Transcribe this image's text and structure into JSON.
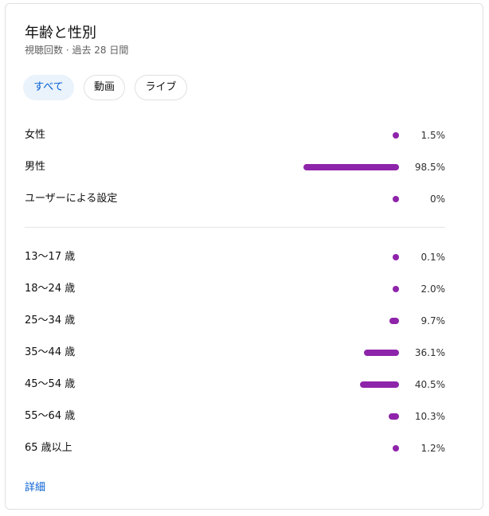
{
  "card": {
    "title": "年齢と性別",
    "subtitle": "視聴回数 · 過去 28 日間"
  },
  "filters": [
    {
      "label": "すべて",
      "selected": true
    },
    {
      "label": "動画",
      "selected": false
    },
    {
      "label": "ライブ",
      "selected": false
    }
  ],
  "gender_rows": [
    {
      "label": "女性",
      "value_text": "1.5%",
      "percent": 1.5
    },
    {
      "label": "男性",
      "value_text": "98.5%",
      "percent": 98.5
    },
    {
      "label": "ユーザーによる設定",
      "value_text": "0%",
      "percent": 0
    }
  ],
  "age_rows": [
    {
      "label": "13〜17 歳",
      "value_text": "0.1%",
      "percent": 0.1
    },
    {
      "label": "18〜24 歳",
      "value_text": "2.0%",
      "percent": 2.0
    },
    {
      "label": "25〜34 歳",
      "value_text": "9.7%",
      "percent": 9.7
    },
    {
      "label": "35〜44 歳",
      "value_text": "36.1%",
      "percent": 36.1
    },
    {
      "label": "45〜54 歳",
      "value_text": "40.5%",
      "percent": 40.5
    },
    {
      "label": "55〜64 歳",
      "value_text": "10.3%",
      "percent": 10.3
    },
    {
      "label": "65 歳以上",
      "value_text": "1.2%",
      "percent": 1.2
    }
  ],
  "details_link": "詳細",
  "colors": {
    "bar": "#8e24aa",
    "accent": "#065fd4",
    "chip_selected_bg": "#eaf3fb"
  }
}
